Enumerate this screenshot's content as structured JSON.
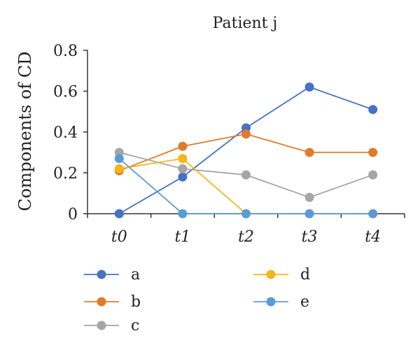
{
  "chart_data": {
    "type": "line",
    "title": "Patient j",
    "xlabel": "",
    "ylabel": "Components of CD",
    "categories": [
      "t0",
      "t1",
      "t2",
      "t3",
      "t4"
    ],
    "ylim": [
      0,
      0.8
    ],
    "yticks": [
      "0",
      "0.2",
      "0.4",
      "0.6",
      "0.8"
    ],
    "grid": false,
    "legend_position": "bottom",
    "series": [
      {
        "name": "a",
        "color": "#4472c4",
        "values": [
          0,
          0.18,
          0.42,
          0.62,
          0.51
        ]
      },
      {
        "name": "b",
        "color": "#e07b2c",
        "values": [
          0.21,
          0.33,
          0.39,
          0.3,
          0.3
        ]
      },
      {
        "name": "c",
        "color": "#a5a5a5",
        "values": [
          0.3,
          0.22,
          0.19,
          0.08,
          0.19
        ]
      },
      {
        "name": "d",
        "color": "#f4b61a",
        "values": [
          0.22,
          0.27,
          0,
          0,
          0
        ]
      },
      {
        "name": "e",
        "color": "#5b9bd5",
        "values": [
          0.27,
          0,
          0,
          0,
          0
        ]
      }
    ]
  }
}
